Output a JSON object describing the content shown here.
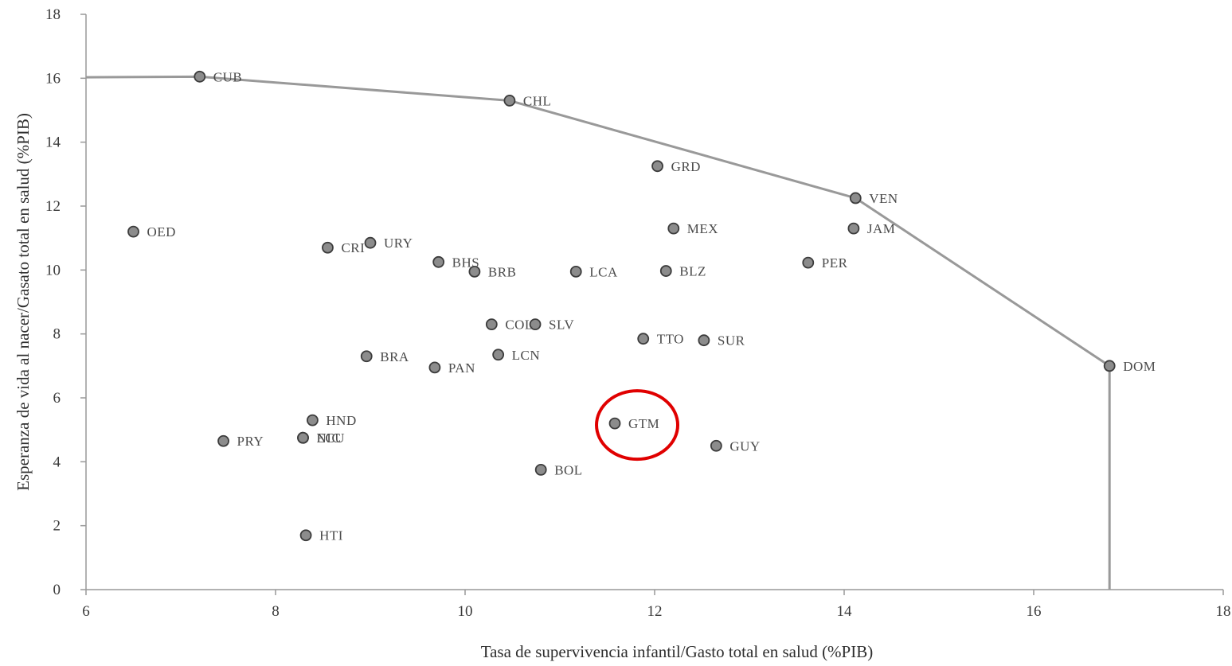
{
  "chart_data": {
    "type": "scatter",
    "title": "",
    "xlabel": "Tasa de supervivencia infantil/Gasto total en salud (%PIB)",
    "ylabel": "Esperanza de vida al nacer/Gasato  total en salud (%PIB)",
    "xlim": [
      6,
      18
    ],
    "ylim": [
      0,
      18
    ],
    "x_ticks": [
      6,
      8,
      10,
      12,
      14,
      16,
      18
    ],
    "y_ticks": [
      0,
      2,
      4,
      6,
      8,
      10,
      12,
      14,
      16,
      18
    ],
    "grid": false,
    "legend": "none",
    "colors": {
      "point": "#8c8c8c",
      "point_edge": "#3c3c3c",
      "frontier": "#999999",
      "highlight": "#e00000",
      "axis": "#999999"
    },
    "points": [
      {
        "label": "CUB",
        "x": 7.2,
        "y": 16.05
      },
      {
        "label": "CHL",
        "x": 10.47,
        "y": 15.3
      },
      {
        "label": "GRD",
        "x": 12.03,
        "y": 13.25
      },
      {
        "label": "VEN",
        "x": 14.12,
        "y": 12.25
      },
      {
        "label": "OED",
        "x": 6.5,
        "y": 11.2
      },
      {
        "label": "MEX",
        "x": 12.2,
        "y": 11.3
      },
      {
        "label": "JAM",
        "x": 14.1,
        "y": 11.3
      },
      {
        "label": "CRI",
        "x": 8.55,
        "y": 10.7
      },
      {
        "label": "URY",
        "x": 9.0,
        "y": 10.85
      },
      {
        "label": "BHS",
        "x": 9.72,
        "y": 10.25
      },
      {
        "label": "BRB",
        "x": 10.1,
        "y": 9.95
      },
      {
        "label": "LCA",
        "x": 11.17,
        "y": 9.95
      },
      {
        "label": "BLZ",
        "x": 12.12,
        "y": 9.97
      },
      {
        "label": "PER",
        "x": 13.62,
        "y": 10.23
      },
      {
        "label": "COL",
        "x": 10.28,
        "y": 8.3
      },
      {
        "label": "SLV",
        "x": 10.74,
        "y": 8.3
      },
      {
        "label": "TTO",
        "x": 11.88,
        "y": 7.85
      },
      {
        "label": "SUR",
        "x": 12.52,
        "y": 7.8
      },
      {
        "label": "BRA",
        "x": 8.96,
        "y": 7.3
      },
      {
        "label": "LCN",
        "x": 10.35,
        "y": 7.35
      },
      {
        "label": "PAN",
        "x": 9.68,
        "y": 6.95
      },
      {
        "label": "DOM",
        "x": 16.8,
        "y": 7.0
      },
      {
        "label": "HND",
        "x": 8.39,
        "y": 5.3
      },
      {
        "label": "GTM",
        "x": 11.58,
        "y": 5.2
      },
      {
        "label": "PRY",
        "x": 7.45,
        "y": 4.65
      },
      {
        "label": "NIC",
        "x": 8.29,
        "y": 4.75
      },
      {
        "label": "ECU",
        "x": 8.29,
        "y": 4.75
      },
      {
        "label": "GUY",
        "x": 12.65,
        "y": 4.5
      },
      {
        "label": "BOL",
        "x": 10.8,
        "y": 3.75
      },
      {
        "label": "HTI",
        "x": 8.32,
        "y": 1.7
      }
    ],
    "frontier": [
      {
        "x": 6.0,
        "y": 16.03
      },
      {
        "x": 7.2,
        "y": 16.05
      },
      {
        "x": 10.47,
        "y": 15.3
      },
      {
        "x": 14.12,
        "y": 12.25
      },
      {
        "x": 16.8,
        "y": 7.0
      },
      {
        "x": 16.8,
        "y": 0.0
      }
    ],
    "highlight": {
      "label": "GTM"
    }
  }
}
